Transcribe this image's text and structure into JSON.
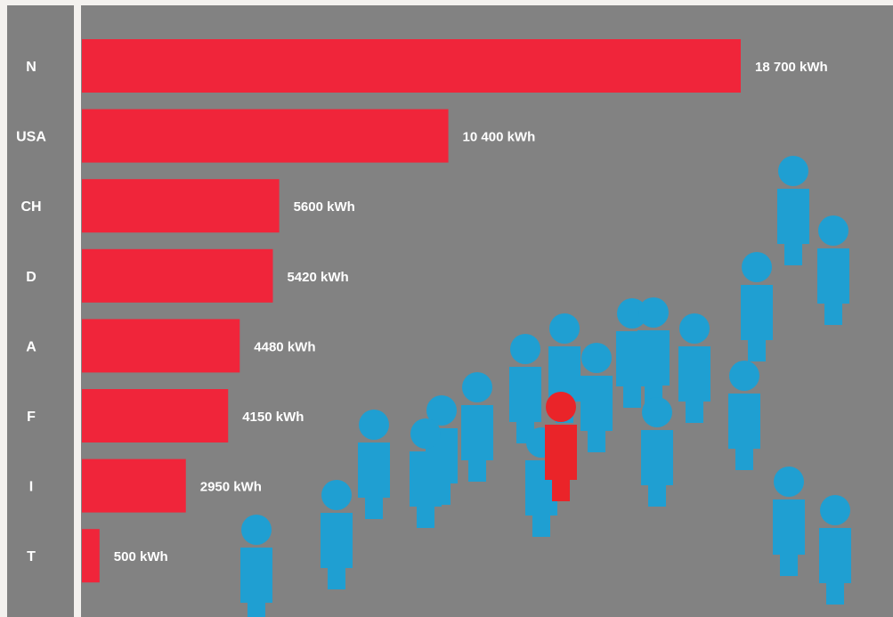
{
  "colors": {
    "bar": "#f0253a",
    "person": "#1f9fd2",
    "highlight_person": "#ea2429",
    "panel": "#828282",
    "label_strip": "#808080",
    "text": "#ffffff"
  },
  "chart_data": {
    "type": "bar",
    "orientation": "horizontal",
    "title": "",
    "xlabel": "",
    "ylabel": "",
    "unit": "kWh",
    "xlim": [
      0,
      19000
    ],
    "grid": false,
    "categories": [
      "N",
      "USA",
      "CH",
      "D",
      "A",
      "F",
      "I",
      "T"
    ],
    "values": [
      18700,
      10400,
      5600,
      5420,
      4480,
      4150,
      2950,
      500
    ],
    "value_labels": [
      "18 700 kWh",
      "10 400 kWh",
      "5600 kWh",
      "5420 kWh",
      "4480 kWh",
      "4150 kWh",
      "2950 kWh",
      "500 kWh"
    ],
    "decoration": {
      "icon": "person-icon",
      "count": 28,
      "highlighted_count": 1
    }
  }
}
